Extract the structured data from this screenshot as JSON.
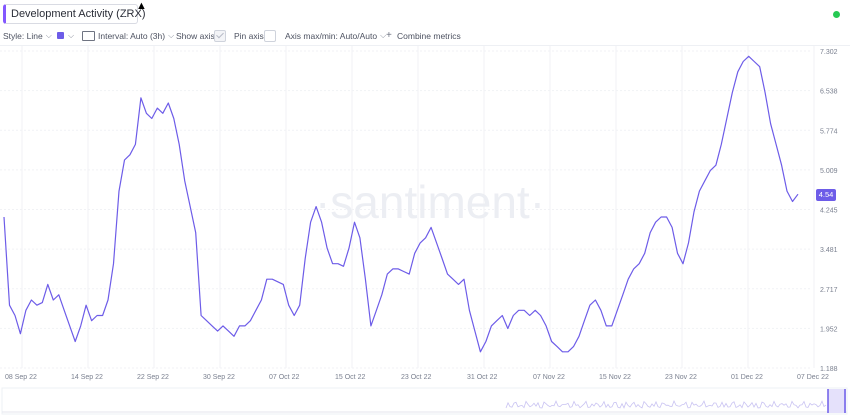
{
  "header": {
    "title": "Development Activity (ZRX)",
    "status_color": "#26c953"
  },
  "toolbar": {
    "style_label": "Style: Line",
    "color_swatch": "#6d5ce8",
    "interval_label": "Interval: Auto (3h)",
    "show_axis_label": "Show axis",
    "show_axis_checked": true,
    "pin_axis_label": "Pin axis",
    "pin_axis_checked": false,
    "axis_label": "Axis max/min: Auto/Auto",
    "combine_label": "Combine metrics"
  },
  "watermark": "·santiment·",
  "price_tag": "4.54",
  "chart_data": {
    "type": "line",
    "title": "Development Activity (ZRX)",
    "ylim": [
      1.188,
      7.302
    ],
    "yticks": [
      "7.302",
      "6.538",
      "5.774",
      "5.009",
      "4.245",
      "3.481",
      "2.717",
      "1.952",
      "1.188"
    ],
    "xticks": [
      "08 Sep 22",
      "14 Sep 22",
      "22 Sep 22",
      "30 Sep 22",
      "07 Oct 22",
      "15 Oct 22",
      "23 Oct 22",
      "31 Oct 22",
      "07 Nov 22",
      "15 Nov 22",
      "23 Nov 22",
      "01 Dec 22",
      "07 Dec 22"
    ],
    "grid": true,
    "color": "#6d5ce8",
    "last_value": 4.54,
    "series": [
      {
        "name": "",
        "x": [
          0,
          2,
          4,
          6,
          8,
          10,
          12,
          14,
          16,
          18,
          20,
          22,
          24,
          26,
          28,
          30,
          32,
          34,
          36,
          38,
          40,
          42,
          44,
          46,
          48,
          50,
          52,
          54,
          56,
          58,
          60,
          62,
          64,
          66,
          68,
          70,
          72,
          74,
          76,
          78,
          80,
          82,
          84,
          86,
          88,
          90,
          92,
          94,
          96,
          98,
          100,
          102,
          104,
          106,
          108,
          110,
          112,
          114,
          116,
          118,
          120,
          122,
          124,
          126,
          128,
          130,
          132,
          134,
          136,
          138,
          140,
          142,
          144,
          146,
          148,
          150,
          152,
          154,
          156,
          158,
          160,
          162,
          164,
          166,
          168,
          170,
          172,
          174,
          176,
          178,
          180,
          182,
          184,
          186,
          188,
          190,
          192,
          194,
          196,
          198,
          200,
          202,
          204,
          206,
          208,
          210,
          212,
          214,
          216,
          218,
          220,
          222,
          224,
          226,
          228,
          230,
          232,
          234,
          236,
          238,
          240,
          242,
          244,
          246,
          248,
          250,
          252,
          254,
          256,
          258,
          260,
          262,
          264,
          266,
          268,
          270,
          272,
          274,
          276,
          278,
          280,
          282,
          284,
          286,
          288,
          290
        ],
        "values": [
          4.1,
          2.4,
          2.2,
          1.85,
          2.3,
          2.5,
          2.4,
          2.45,
          2.8,
          2.5,
          2.6,
          2.3,
          2.0,
          1.7,
          2.0,
          2.4,
          2.1,
          2.2,
          2.2,
          2.5,
          3.2,
          4.6,
          5.2,
          5.3,
          5.5,
          6.4,
          6.1,
          6.0,
          6.2,
          6.1,
          6.3,
          6.0,
          5.5,
          4.8,
          4.3,
          3.8,
          2.2,
          2.1,
          2.0,
          1.9,
          2.0,
          1.9,
          1.8,
          2.0,
          2.0,
          2.1,
          2.3,
          2.5,
          2.9,
          2.9,
          2.85,
          2.8,
          2.4,
          2.2,
          2.4,
          3.3,
          4.0,
          4.3,
          4.0,
          3.5,
          3.2,
          3.2,
          3.15,
          3.5,
          4.0,
          3.7,
          2.9,
          2.0,
          2.3,
          2.6,
          3.0,
          3.1,
          3.1,
          3.05,
          3.0,
          3.4,
          3.6,
          3.7,
          3.9,
          3.6,
          3.3,
          3.0,
          2.9,
          2.8,
          2.9,
          2.3,
          1.9,
          1.5,
          1.7,
          2.0,
          2.1,
          2.2,
          1.95,
          2.2,
          2.3,
          2.3,
          2.2,
          2.3,
          2.2,
          2.0,
          1.7,
          1.6,
          1.5,
          1.5,
          1.6,
          1.8,
          2.1,
          2.4,
          2.5,
          2.3,
          2.0,
          2.0,
          2.3,
          2.6,
          2.9,
          3.1,
          3.2,
          3.4,
          3.8,
          4.0,
          4.1,
          4.1,
          3.9,
          3.4,
          3.2,
          3.6,
          4.2,
          4.6,
          4.8,
          5.0,
          5.1,
          5.5,
          6.0,
          6.5,
          6.9,
          7.1,
          7.2,
          7.1,
          7.0,
          6.5,
          5.9,
          5.5,
          5.1,
          4.6,
          4.4,
          4.54
        ]
      }
    ]
  }
}
